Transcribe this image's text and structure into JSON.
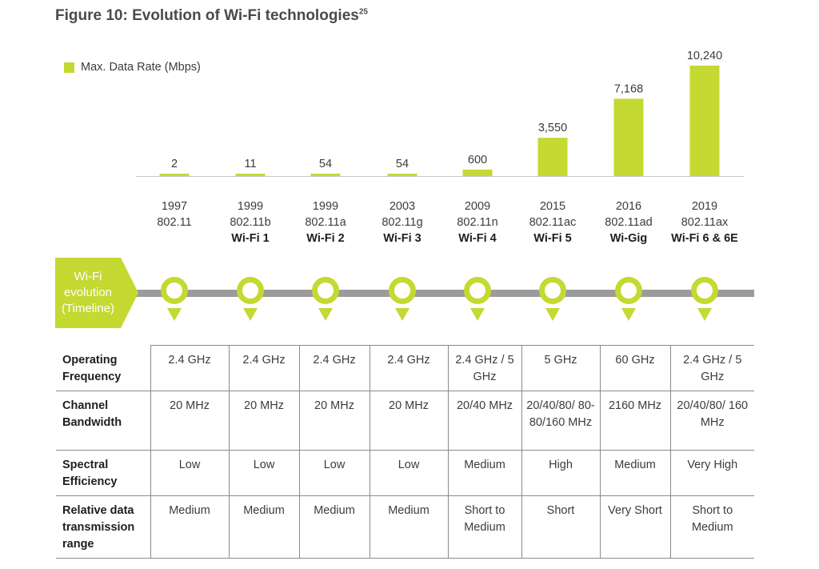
{
  "title": "Figure 10: Evolution of Wi-Fi technologies",
  "title_sup": "25",
  "colors": {
    "accent": "#c4d931",
    "timeline_line": "#9b9b9b",
    "text": "#3c3c3c"
  },
  "chart_data": {
    "type": "bar",
    "title": "Figure 10: Evolution of Wi-Fi technologies",
    "legend_position": "top-left",
    "series": [
      {
        "name": "Max. Data Rate (Mbps)",
        "values": [
          2,
          11,
          54,
          54,
          600,
          3550,
          7168,
          10240
        ]
      }
    ],
    "value_labels": [
      "2",
      "11",
      "54",
      "54",
      "600",
      "3,550",
      "7,168",
      "10,240"
    ],
    "categories": [
      {
        "year": "1997",
        "standard": "802.11",
        "name": ""
      },
      {
        "year": "1999",
        "standard": "802.11b",
        "name": "Wi-Fi 1"
      },
      {
        "year": "1999",
        "standard": "802.11a",
        "name": "Wi-Fi 2"
      },
      {
        "year": "2003",
        "standard": "802.11g",
        "name": "Wi-Fi 3"
      },
      {
        "year": "2009",
        "standard": "802.11n",
        "name": "Wi-Fi 4"
      },
      {
        "year": "2015",
        "standard": "802.11ac",
        "name": "Wi-Fi 5"
      },
      {
        "year": "2016",
        "standard": "802.11ad",
        "name": "Wi-Gig"
      },
      {
        "year": "2019",
        "standard": "802.11ax",
        "name": "Wi-Fi 6 & 6E"
      }
    ],
    "ylim": [
      0,
      10240
    ],
    "grid": false
  },
  "timeline": {
    "label": "Wi-Fi evolution (Timeline)"
  },
  "table": {
    "rows": [
      {
        "label": "Operating Frequency",
        "cells": [
          "2.4 GHz",
          "2.4 GHz",
          "2.4 GHz",
          "2.4 GHz",
          "2.4 GHz / 5 GHz",
          "5 GHz",
          "60 GHz",
          "2.4 GHz / 5 GHz"
        ]
      },
      {
        "label": "Channel Bandwidth",
        "cells": [
          "20 MHz",
          "20 MHz",
          "20 MHz",
          "20 MHz",
          "20/40 MHz",
          "20/40/80/ 80-80/160 MHz",
          "2160 MHz",
          "20/40/80/ 160 MHz"
        ]
      },
      {
        "label": "Spectral Efficiency",
        "cells": [
          "Low",
          "Low",
          "Low",
          "Low",
          "Medium",
          "High",
          "Medium",
          "Very High"
        ]
      },
      {
        "label": "Relative data transmission range",
        "cells": [
          "Medium",
          "Medium",
          "Medium",
          "Medium",
          "Short to Medium",
          "Short",
          "Very Short",
          "Short to Medium"
        ]
      }
    ]
  }
}
